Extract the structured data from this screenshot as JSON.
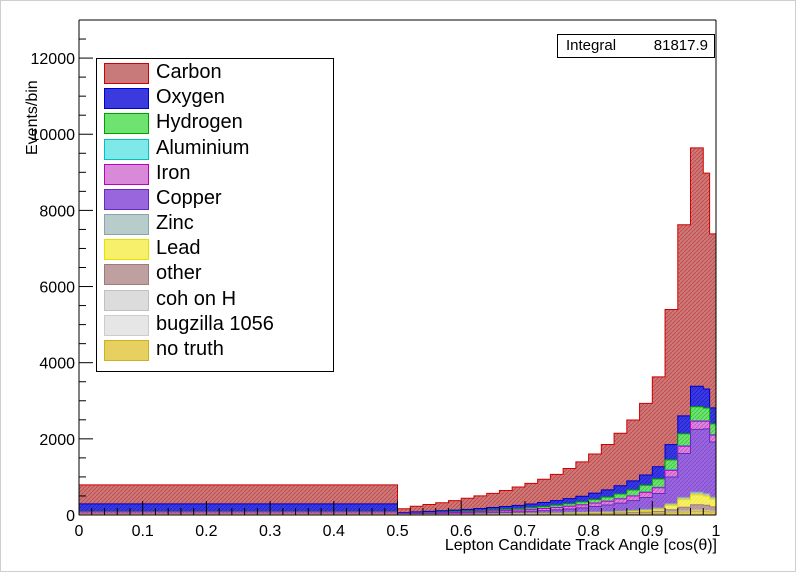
{
  "stats": {
    "label": "Integral",
    "value": "81817.9"
  },
  "legend": [
    {
      "label": "Carbon",
      "fill": "#c87a7a",
      "stroke": "#d00000"
    },
    {
      "label": "Oxygen",
      "fill": "#3a3adf",
      "stroke": "#0000c8"
    },
    {
      "label": "Hydrogen",
      "fill": "#6fe36f",
      "stroke": "#00a000"
    },
    {
      "label": "Aluminium",
      "fill": "#7fe8e8",
      "stroke": "#00c0c0"
    },
    {
      "label": "Iron",
      "fill": "#d88ad8",
      "stroke": "#c000c0"
    },
    {
      "label": "Copper",
      "fill": "#9966dd",
      "stroke": "#6a2ac0"
    },
    {
      "label": "Zinc",
      "fill": "#b8cccc",
      "stroke": "#8aa5a5"
    },
    {
      "label": "Lead",
      "fill": "#f6f06a",
      "stroke": "#e8e000"
    },
    {
      "label": "other",
      "fill": "#bea0a0",
      "stroke": "#a07a7a"
    },
    {
      "label": "coh on H",
      "fill": "#dcdcdc",
      "stroke": "#c0c0c0"
    },
    {
      "label": "bugzilla 1056",
      "fill": "#e6e6e6",
      "stroke": "#cccccc"
    },
    {
      "label": "no truth",
      "fill": "#e6d060",
      "stroke": "#d0b020"
    }
  ],
  "chart_data": {
    "type": "histogram",
    "title": "",
    "xlabel": "Lepton Candidate Track Angle [cos(θ)]",
    "ylabel": "Events/bin",
    "xlim": [
      0,
      1
    ],
    "ylim": [
      0,
      13000
    ],
    "x_ticks": [
      0,
      0.1,
      0.2,
      0.3,
      0.4,
      0.5,
      0.6,
      0.7,
      0.8,
      0.9,
      1
    ],
    "x_tick_labels": [
      "0",
      "0.1",
      "0.2",
      "0.3",
      "0.4",
      "0.5",
      "0.6",
      "0.7",
      "0.8",
      "0.9",
      "1"
    ],
    "y_ticks": [
      0,
      2000,
      4000,
      6000,
      8000,
      10000,
      12000
    ],
    "y_tick_labels": [
      "0",
      "2000",
      "4000",
      "6000",
      "8000",
      "10000",
      "12000"
    ],
    "stacked": true,
    "bin_edges": [
      0,
      0.5,
      0.52,
      0.54,
      0.56,
      0.58,
      0.6,
      0.62,
      0.64,
      0.66,
      0.68,
      0.7,
      0.72,
      0.74,
      0.76,
      0.78,
      0.8,
      0.82,
      0.84,
      0.86,
      0.88,
      0.9,
      0.92,
      0.94,
      0.96,
      0.98,
      0.99,
      1.0
    ],
    "series": [
      {
        "name": "Carbon",
        "values": [
          500,
          100,
          150,
          180,
          210,
          250,
          290,
          330,
          370,
          420,
          480,
          540,
          610,
          690,
          790,
          900,
          1030,
          1190,
          1380,
          1600,
          1880,
          2360,
          3550,
          5020,
          6260,
          5670,
          4570
        ]
      },
      {
        "name": "Oxygen",
        "values": [
          200,
          20,
          28,
          34,
          40,
          46,
          52,
          60,
          68,
          76,
          86,
          96,
          108,
          120,
          135,
          150,
          170,
          190,
          215,
          240,
          270,
          320,
          400,
          470,
          540,
          500,
          420
        ]
      },
      {
        "name": "Hydrogen",
        "values": [
          10,
          5,
          8,
          10,
          12,
          15,
          18,
          22,
          26,
          30,
          35,
          40,
          46,
          54,
          62,
          72,
          85,
          100,
          120,
          145,
          175,
          215,
          260,
          310,
          360,
          330,
          280
        ]
      },
      {
        "name": "Aluminium",
        "values": [
          3,
          1,
          1,
          1,
          1,
          2,
          2,
          2,
          3,
          3,
          3,
          4,
          4,
          5,
          5,
          6,
          7,
          8,
          9,
          10,
          12,
          14,
          16,
          18,
          20,
          18,
          16
        ]
      },
      {
        "name": "Iron",
        "values": [
          40,
          15,
          18,
          20,
          23,
          26,
          29,
          33,
          37,
          41,
          46,
          51,
          57,
          63,
          70,
          78,
          88,
          99,
          110,
          122,
          136,
          152,
          172,
          192,
          212,
          200,
          180
        ]
      },
      {
        "name": "Copper",
        "values": [
          12,
          10,
          12,
          14,
          17,
          20,
          24,
          28,
          33,
          39,
          46,
          55,
          66,
          80,
          97,
          118,
          143,
          173,
          210,
          255,
          310,
          380,
          700,
          1150,
          1650,
          1700,
          1450
        ]
      },
      {
        "name": "Zinc",
        "values": [
          5,
          3,
          3,
          4,
          4,
          5,
          6,
          7,
          8,
          9,
          10,
          11,
          12,
          14,
          16,
          18,
          20,
          23,
          26,
          30,
          35,
          40,
          50,
          60,
          70,
          65,
          55
        ]
      },
      {
        "name": "Lead",
        "values": [
          8,
          3,
          4,
          4,
          5,
          5,
          6,
          7,
          8,
          9,
          10,
          11,
          12,
          14,
          16,
          18,
          20,
          22,
          25,
          30,
          38,
          50,
          110,
          200,
          260,
          240,
          200
        ]
      },
      {
        "name": "other",
        "values": [
          6,
          2,
          3,
          3,
          4,
          4,
          5,
          5,
          6,
          7,
          8,
          9,
          10,
          11,
          13,
          15,
          17,
          20,
          23,
          27,
          32,
          40,
          60,
          100,
          140,
          140,
          110
        ]
      },
      {
        "name": "coh on H",
        "values": [
          2,
          1,
          1,
          1,
          1,
          1,
          1,
          2,
          2,
          2,
          2,
          3,
          3,
          3,
          4,
          4,
          5,
          5,
          6,
          7,
          8,
          10,
          13,
          16,
          20,
          18,
          15
        ]
      },
      {
        "name": "bugzilla 1056",
        "values": [
          1,
          0,
          0,
          0,
          0,
          1,
          1,
          1,
          1,
          1,
          1,
          1,
          2,
          2,
          2,
          2,
          3,
          3,
          3,
          4,
          4,
          5,
          6,
          8,
          10,
          9,
          8
        ]
      },
      {
        "name": "no truth",
        "values": [
          5,
          3,
          3,
          4,
          4,
          4,
          5,
          5,
          6,
          6,
          7,
          8,
          9,
          10,
          11,
          13,
          15,
          17,
          20,
          25,
          32,
          40,
          60,
          80,
          100,
          90,
          80
        ]
      }
    ]
  }
}
